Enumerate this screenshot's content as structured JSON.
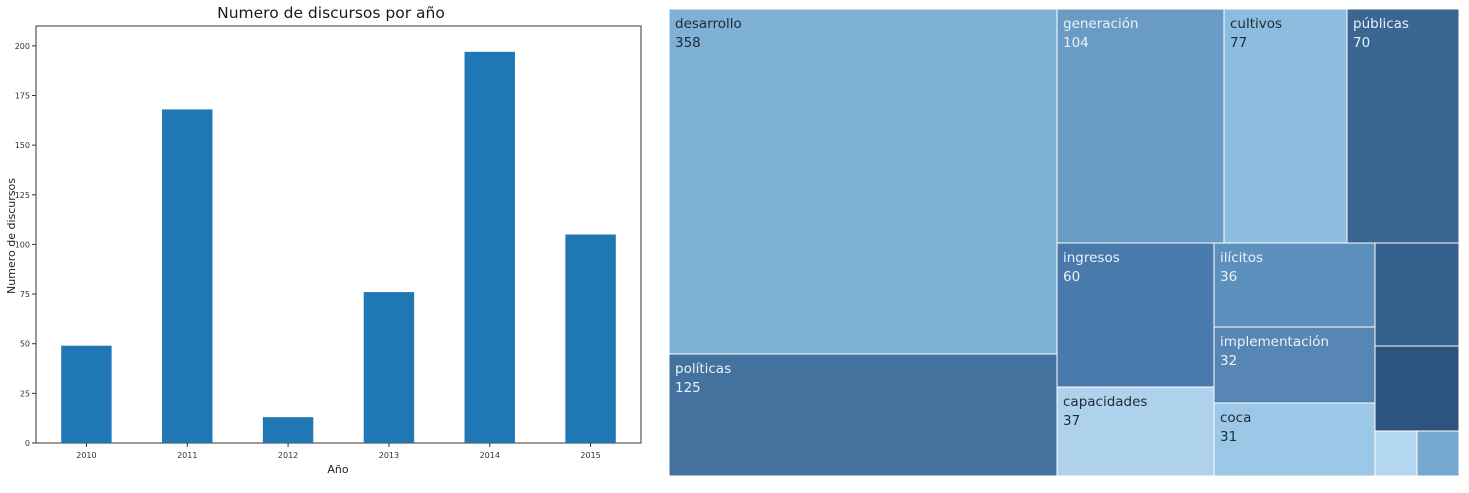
{
  "chart_data": [
    {
      "type": "bar",
      "title": "Numero de discursos por año",
      "xlabel": "Año",
      "ylabel": "Numero de discursos",
      "categories": [
        "2010",
        "2011",
        "2012",
        "2013",
        "2014",
        "2015"
      ],
      "values": [
        49,
        168,
        13,
        76,
        197,
        105
      ],
      "ylim": [
        0,
        210
      ],
      "yticks": [
        0,
        25,
        50,
        75,
        100,
        125,
        150,
        175,
        200
      ],
      "ytick_labels": [
        "0",
        "25",
        "50",
        "75",
        "100",
        "125",
        "150",
        "175",
        "200"
      ],
      "bar_color": "#1f77b4",
      "grid": false,
      "legend": "none"
    },
    {
      "type": "treemap",
      "items": [
        {
          "label": "desarrollo",
          "value": 358,
          "color": "#7fb0d5"
        },
        {
          "label": "políticas",
          "value": 125,
          "color": "#44729f"
        },
        {
          "label": "generación",
          "value": 104,
          "color": "#6a9bc4"
        },
        {
          "label": "cultivos",
          "value": 77,
          "color": "#8ebcdf"
        },
        {
          "label": "públicas",
          "value": 70,
          "color": "#3b6593"
        },
        {
          "label": "ingresos",
          "value": 60,
          "color": "#4a7aab"
        },
        {
          "label": "capacidades",
          "value": 37,
          "color": "#aed2ec"
        },
        {
          "label": "ilícitos",
          "value": 36,
          "color": "#5e90bd"
        },
        {
          "label": "implementación",
          "value": 32,
          "color": "#5786b5"
        },
        {
          "label": "coca",
          "value": 31,
          "color": "#9dc7e6"
        },
        {
          "label": "",
          "value": null,
          "color": "#355f8c"
        },
        {
          "label": "",
          "value": null,
          "color": "#2c547f"
        },
        {
          "label": "",
          "value": null,
          "color": "#b2d7ef"
        },
        {
          "label": "",
          "value": null,
          "color": "#75a7cf"
        }
      ]
    }
  ]
}
